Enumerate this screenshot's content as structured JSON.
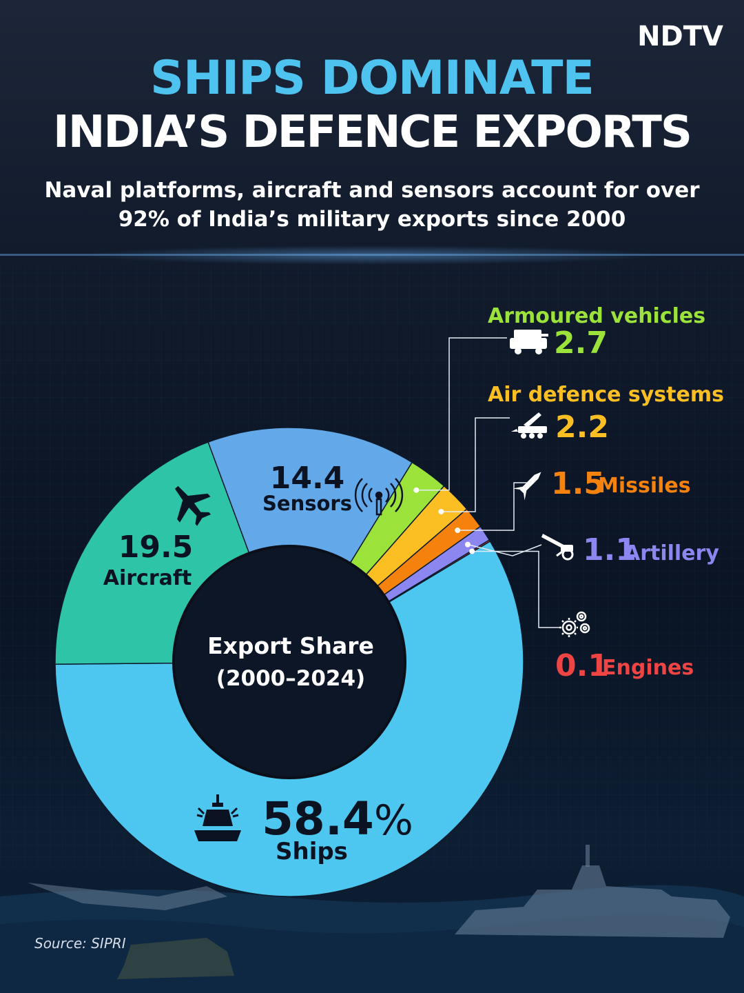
{
  "brand": {
    "logo": "NDTV"
  },
  "header": {
    "title_line1": "SHIPS DOMINATE",
    "title_line2": "INDIA’S DEFENCE EXPORTS",
    "subtitle_line1": "Naval platforms, aircraft and sensors account for over",
    "subtitle_line2": "92% of India’s military exports since 2000"
  },
  "footer": {
    "source": "Source: SIPRI"
  },
  "colors": {
    "background": "#0b1322",
    "title_accent": "#4fc3f0",
    "ships": "#4dc6f0",
    "aircraft": "#2ec4a8",
    "sensors": "#63a8e8",
    "armoured": "#9be23a",
    "air_defence": "#fbbf24",
    "missiles": "#f5820d",
    "artillery": "#8b86f0",
    "engines": "#ef4444"
  },
  "chart_data": {
    "type": "pie",
    "variant": "donut",
    "center_label_line1": "Export Share",
    "center_label_line2": "(2000–2024)",
    "unit": "%",
    "slices": [
      {
        "key": "ships",
        "label": "Ships",
        "value": 58.4,
        "display": "58.4",
        "color": "#4dc6f0",
        "icon": "warship-icon"
      },
      {
        "key": "aircraft",
        "label": "Aircraft",
        "value": 19.5,
        "display": "19.5",
        "color": "#2ec4a8",
        "icon": "fighter-jet-icon"
      },
      {
        "key": "sensors",
        "label": "Sensors",
        "value": 14.4,
        "display": "14.4",
        "color": "#63a8e8",
        "icon": "radar-antenna-icon"
      },
      {
        "key": "armoured",
        "label": "Armoured vehicles",
        "value": 2.7,
        "display": "2.7",
        "color": "#9be23a",
        "icon": "armoured-vehicle-icon"
      },
      {
        "key": "air_defence",
        "label": "Air defence systems",
        "value": 2.2,
        "display": "2.2",
        "color": "#fbbf24",
        "icon": "missile-launcher-icon"
      },
      {
        "key": "missiles",
        "label": "Missiles",
        "value": 1.5,
        "display": "1.5",
        "color": "#f5820d",
        "icon": "missile-icon"
      },
      {
        "key": "artillery",
        "label": "Artillery",
        "value": 1.1,
        "display": "1.1",
        "color": "#8b86f0",
        "icon": "artillery-gun-icon"
      },
      {
        "key": "engines",
        "label": "Engines",
        "value": 0.1,
        "display": "0.1",
        "color": "#ef4444",
        "icon": "engine-gears-icon"
      }
    ]
  }
}
